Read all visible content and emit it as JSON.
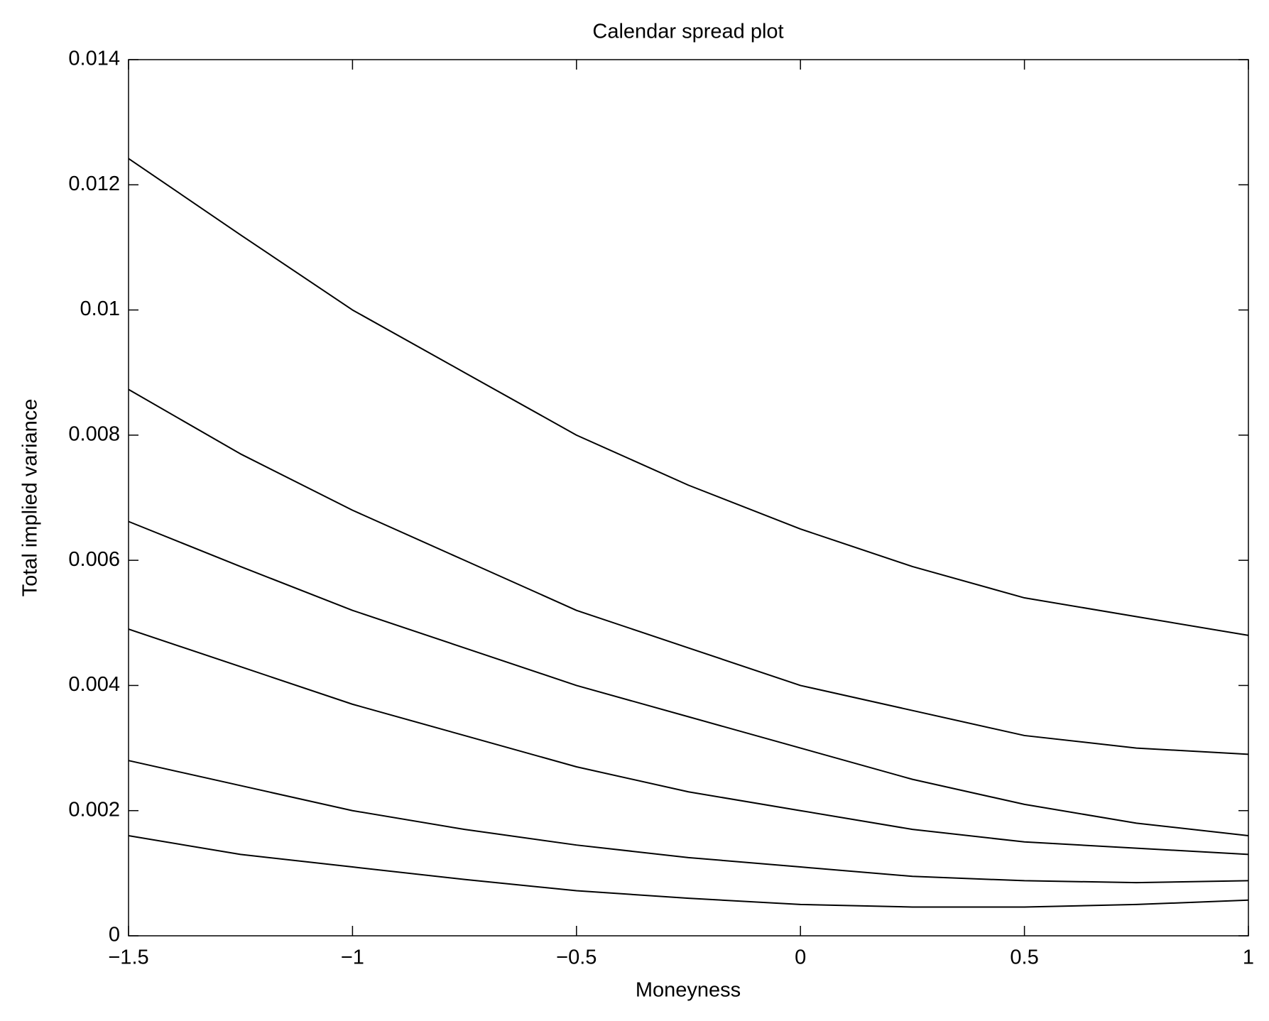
{
  "chart_data": {
    "type": "line",
    "title": "Calendar spread plot",
    "xlabel": "Moneyness",
    "ylabel": "Total implied variance",
    "x": [
      -1.5,
      -1.25,
      -1,
      -0.75,
      -0.5,
      -0.25,
      0,
      0.25,
      0.5,
      0.75,
      1
    ],
    "series": [
      {
        "color": "#000000",
        "values": [
          0.01242,
          0.0112,
          0.01,
          0.009,
          0.008,
          0.0072,
          0.0065,
          0.0059,
          0.0054,
          0.0051,
          0.0048
        ]
      },
      {
        "color": "#000000",
        "values": [
          0.00873,
          0.0077,
          0.0068,
          0.006,
          0.0052,
          0.0046,
          0.004,
          0.0036,
          0.0032,
          0.003,
          0.0029
        ]
      },
      {
        "color": "#000000",
        "values": [
          0.00662,
          0.0059,
          0.0052,
          0.0046,
          0.004,
          0.0035,
          0.003,
          0.0025,
          0.0021,
          0.0018,
          0.0016
        ]
      },
      {
        "color": "#000000",
        "values": [
          0.0049,
          0.0043,
          0.0037,
          0.0032,
          0.0027,
          0.0023,
          0.002,
          0.0017,
          0.0015,
          0.0014,
          0.0013
        ]
      },
      {
        "color": "#000000",
        "values": [
          0.0028,
          0.0024,
          0.002,
          0.0017,
          0.00145,
          0.00125,
          0.0011,
          0.00095,
          0.00088,
          0.00085,
          0.00088
        ]
      },
      {
        "color": "#000000",
        "values": [
          0.0016,
          0.0013,
          0.0011,
          0.0009,
          0.00072,
          0.0006,
          0.0005,
          0.00046,
          0.00046,
          0.0005,
          0.00057
        ]
      }
    ],
    "xlim": [
      -1.5,
      1
    ],
    "xticks": [
      {
        "value": -1.5,
        "label": "−1.5"
      },
      {
        "value": -1,
        "label": "−1"
      },
      {
        "value": -0.5,
        "label": "−0.5"
      },
      0,
      0.5,
      1
    ],
    "ylim": [
      0,
      0.014
    ],
    "yticks": [
      0,
      0.002,
      0.004,
      0.006,
      0.008,
      0.01,
      0.012,
      0.014
    ],
    "grid": false
  }
}
